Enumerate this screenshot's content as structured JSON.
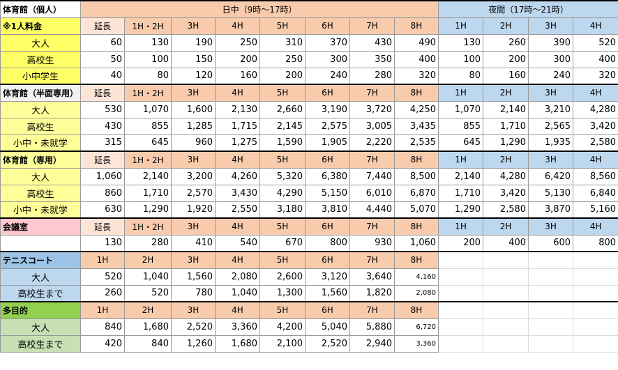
{
  "header": {
    "day_label": "日中（9時～17時）",
    "night_label": "夜間（17時～21時）"
  },
  "sections": [
    {
      "title": "体育館（個人）",
      "note": "※1人料金",
      "columns": [
        "延長",
        "1H・2H",
        "3H",
        "4H",
        "5H",
        "6H",
        "7H",
        "8H",
        "1H",
        "2H",
        "3H",
        "4H"
      ],
      "rows": [
        {
          "label": "大人",
          "values": [
            "60",
            "130",
            "190",
            "250",
            "310",
            "370",
            "430",
            "490",
            "130",
            "260",
            "390",
            "520"
          ]
        },
        {
          "label": "高校生",
          "values": [
            "50",
            "100",
            "150",
            "200",
            "250",
            "300",
            "350",
            "400",
            "100",
            "200",
            "300",
            "400"
          ]
        },
        {
          "label": "小中学生",
          "values": [
            "40",
            "80",
            "120",
            "160",
            "200",
            "240",
            "280",
            "320",
            "80",
            "160",
            "240",
            "320"
          ]
        }
      ]
    },
    {
      "title": "体育館（半面専用）",
      "columns": [
        "延長",
        "1H・2H",
        "3H",
        "4H",
        "5H",
        "6H",
        "7H",
        "8H",
        "1H",
        "2H",
        "3H",
        "4H"
      ],
      "rows": [
        {
          "label": "大人",
          "values": [
            "530",
            "1,070",
            "1,600",
            "2,130",
            "2,660",
            "3,190",
            "3,720",
            "4,250",
            "1,070",
            "2,140",
            "3,210",
            "4,280"
          ]
        },
        {
          "label": "高校生",
          "values": [
            "430",
            "855",
            "1,285",
            "1,715",
            "2,145",
            "2,575",
            "3,005",
            "3,435",
            "855",
            "1,710",
            "2,565",
            "3,420"
          ]
        },
        {
          "label": "小中・未就学",
          "values": [
            "315",
            "645",
            "960",
            "1,275",
            "1,590",
            "1,905",
            "2,220",
            "2,535",
            "645",
            "1,290",
            "1,935",
            "2,580"
          ]
        }
      ]
    },
    {
      "title": "体育館（専用）",
      "columns": [
        "延長",
        "1H・2H",
        "3H",
        "4H",
        "5H",
        "6H",
        "7H",
        "8H",
        "1H",
        "2H",
        "3H",
        "4H"
      ],
      "rows": [
        {
          "label": "大人",
          "values": [
            "1,060",
            "2,140",
            "3,200",
            "4,260",
            "5,320",
            "6,380",
            "7,440",
            "8,500",
            "2,140",
            "4,280",
            "6,420",
            "8,560"
          ]
        },
        {
          "label": "高校生",
          "values": [
            "860",
            "1,710",
            "2,570",
            "3,430",
            "4,290",
            "5,150",
            "6,010",
            "6,870",
            "1,710",
            "3,420",
            "5,130",
            "6,840"
          ]
        },
        {
          "label": "小中・未就学",
          "values": [
            "630",
            "1,290",
            "1,920",
            "2,550",
            "3,180",
            "3,810",
            "4,440",
            "5,070",
            "1,290",
            "2,580",
            "3,870",
            "5,160"
          ]
        }
      ]
    },
    {
      "title": "会議室",
      "columns": [
        "延長",
        "1H・2H",
        "3H",
        "4H",
        "5H",
        "6H",
        "7H",
        "8H",
        "1H",
        "2H",
        "3H",
        "4H"
      ],
      "rows": [
        {
          "values": [
            "130",
            "280",
            "410",
            "540",
            "670",
            "800",
            "930",
            "1,060",
            "200",
            "400",
            "600",
            "800"
          ]
        }
      ]
    },
    {
      "title": "テニスコート",
      "columns": [
        "1H",
        "2H",
        "3H",
        "4H",
        "5H",
        "6H",
        "7H",
        "8H"
      ],
      "rows": [
        {
          "label": "大人",
          "values": [
            "520",
            "1,040",
            "1,560",
            "2,080",
            "2,600",
            "3,120",
            "3,640",
            "4,160"
          ]
        },
        {
          "label": "高校生まで",
          "values": [
            "260",
            "520",
            "780",
            "1,040",
            "1,300",
            "1,560",
            "1,820",
            "2,080"
          ]
        }
      ]
    },
    {
      "title": "多目的",
      "columns": [
        "1H",
        "2H",
        "3H",
        "4H",
        "5H",
        "6H",
        "7H",
        "8H"
      ],
      "rows": [
        {
          "label": "大人",
          "values": [
            "840",
            "1,680",
            "2,520",
            "3,360",
            "4,200",
            "5,040",
            "5,880",
            "6,720"
          ]
        },
        {
          "label": "高校生まで",
          "values": [
            "420",
            "840",
            "1,260",
            "1,680",
            "2,100",
            "2,520",
            "2,940",
            "3,360"
          ]
        }
      ]
    }
  ]
}
